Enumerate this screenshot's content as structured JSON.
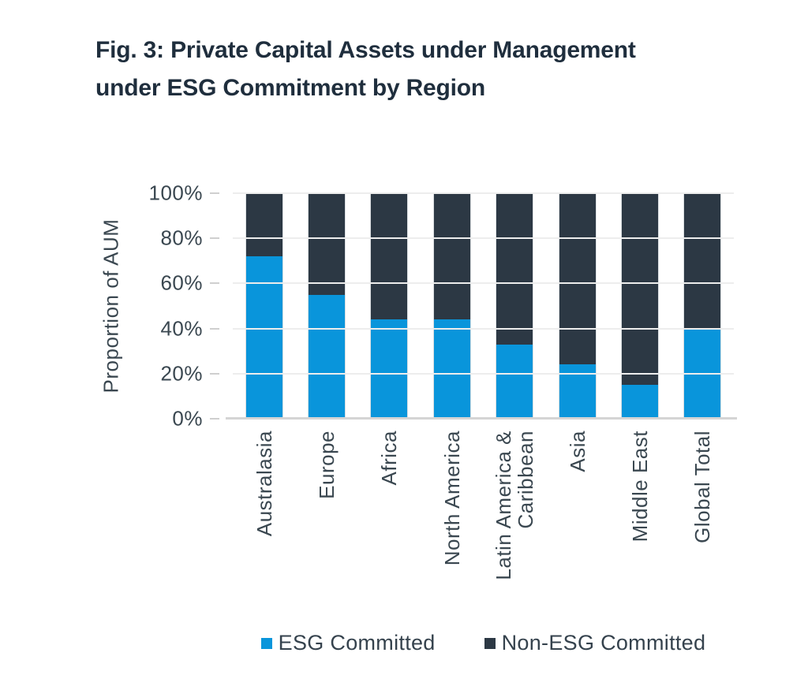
{
  "figure": {
    "title_lines": [
      "Fig. 3: Private Capital Assets under Management",
      "under ESG Commitment by Region"
    ]
  },
  "chart_data": {
    "type": "bar",
    "stacked": true,
    "title": "Fig. 3: Private Capital Assets under Management under ESG Commitment by Region",
    "xlabel": "",
    "ylabel": "Proportion of AUM",
    "ylim": [
      0,
      100
    ],
    "grid": true,
    "legend_position": "bottom",
    "y_ticks": [
      {
        "value": 100,
        "label": "100%"
      },
      {
        "value": 80,
        "label": "80%"
      },
      {
        "value": 60,
        "label": "60%"
      },
      {
        "value": 40,
        "label": "40%"
      },
      {
        "value": 20,
        "label": "20%"
      },
      {
        "value": 0,
        "label": "0%"
      }
    ],
    "categories": [
      "Australasia",
      "Europe",
      "Africa",
      "North America",
      "Latin America & Caribbean",
      "Asia",
      "Middle East",
      "Global Total"
    ],
    "series": [
      {
        "name": "ESG Committed",
        "color": "#0995DB",
        "values": [
          72,
          55,
          44,
          44,
          33,
          24,
          15,
          40
        ]
      },
      {
        "name": "Non-ESG Committed",
        "color": "#2C3844",
        "values": [
          28,
          45,
          56,
          56,
          67,
          76,
          85,
          60
        ]
      }
    ]
  },
  "colors": {
    "title_text": "#1F2E3D",
    "axis_text": "#3A4750",
    "legend_text": "#35424D",
    "gridline": "#EDEDED",
    "axis_line": "#D5D5D5",
    "background": "#FFFFFF"
  }
}
